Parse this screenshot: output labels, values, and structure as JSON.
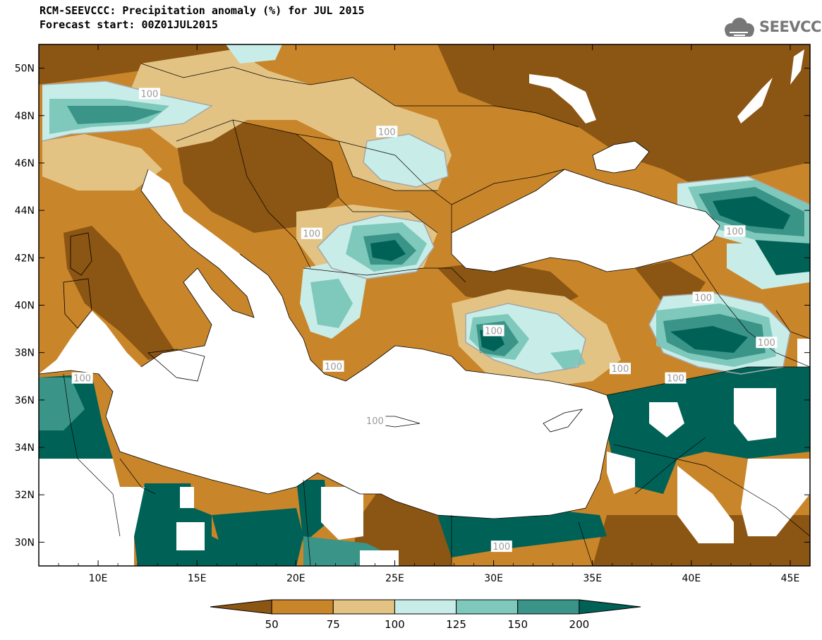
{
  "title_line1": "RCM-SEEVCCC: Precipitation anomaly (%) for JUL 2015",
  "title_line2": "Forecast start: 00Z01JUL2015",
  "logo_text": "SEEVCCC",
  "logo_icon": "cloud-logo-icon",
  "map": {
    "lon_range": [
      7,
      46
    ],
    "lat_range": [
      29,
      51
    ],
    "lat_ticks": [
      {
        "value": 50,
        "label": "50N"
      },
      {
        "value": 48,
        "label": "48N"
      },
      {
        "value": 46,
        "label": "46N"
      },
      {
        "value": 44,
        "label": "44N"
      },
      {
        "value": 42,
        "label": "42N"
      },
      {
        "value": 40,
        "label": "40N"
      },
      {
        "value": 38,
        "label": "38N"
      },
      {
        "value": 36,
        "label": "36N"
      },
      {
        "value": 34,
        "label": "34N"
      },
      {
        "value": 32,
        "label": "32N"
      },
      {
        "value": 30,
        "label": "30N"
      }
    ],
    "lon_ticks": [
      {
        "value": 10,
        "label": "10E"
      },
      {
        "value": 15,
        "label": "15E"
      },
      {
        "value": 20,
        "label": "20E"
      },
      {
        "value": 25,
        "label": "25E"
      },
      {
        "value": 30,
        "label": "30E"
      },
      {
        "value": 35,
        "label": "35E"
      },
      {
        "value": 40,
        "label": "40E"
      },
      {
        "value": 45,
        "label": "45E"
      }
    ],
    "contour_labels": [
      {
        "text": "100",
        "lon": 12.6,
        "lat": 48.9
      },
      {
        "text": "100",
        "lon": 24.6,
        "lat": 47.3
      },
      {
        "text": "100",
        "lon": 20.8,
        "lat": 43.0
      },
      {
        "text": "100",
        "lon": 30.0,
        "lat": 38.9
      },
      {
        "text": "100",
        "lon": 40.6,
        "lat": 40.3
      },
      {
        "text": "100",
        "lon": 42.2,
        "lat": 43.1
      },
      {
        "text": "100",
        "lon": 43.8,
        "lat": 38.4
      },
      {
        "text": "100",
        "lon": 36.4,
        "lat": 37.3
      },
      {
        "text": "100",
        "lon": 39.2,
        "lat": 36.9
      },
      {
        "text": "100",
        "lon": 21.9,
        "lat": 37.4
      },
      {
        "text": "100",
        "lon": 9.2,
        "lat": 36.9
      },
      {
        "text": "100",
        "lon": 30.4,
        "lat": 29.8
      },
      {
        "text": "100",
        "lon": 24.0,
        "lat": 35.1
      }
    ]
  },
  "colorbar": {
    "labels": [
      "50",
      "75",
      "100",
      "125",
      "150",
      "200"
    ],
    "colors": [
      "#8b5513",
      "#c8852a",
      "#e3c383",
      "#c8ede8",
      "#7fc9bc",
      "#3a9488",
      "#006257"
    ]
  }
}
